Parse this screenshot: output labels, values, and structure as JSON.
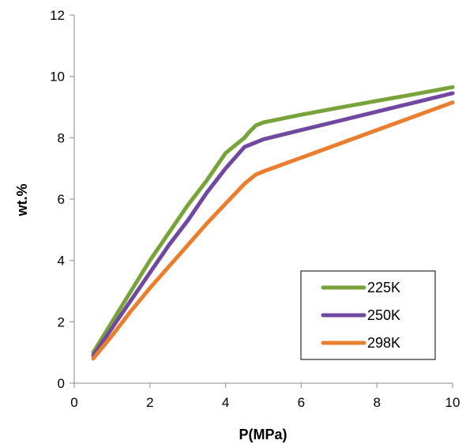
{
  "chart_data": {
    "type": "line",
    "title": "",
    "xlabel": "P(MPa)",
    "ylabel": "wt.%",
    "xlim": [
      0,
      10
    ],
    "ylim": [
      0,
      12
    ],
    "xticks": [
      0,
      2,
      4,
      6,
      8,
      10
    ],
    "yticks": [
      0,
      2,
      4,
      6,
      8,
      10,
      12
    ],
    "grid": false,
    "legend_position": "bottom-right",
    "series": [
      {
        "name": "225K",
        "color": "#77A33A",
        "x": [
          0.5,
          1,
          1.5,
          2,
          2.5,
          3,
          3.5,
          4,
          4.5,
          4.6,
          4.8,
          5,
          6,
          7,
          8,
          9,
          10
        ],
        "y": [
          1.0,
          2.0,
          3.0,
          4.0,
          4.9,
          5.8,
          6.6,
          7.5,
          8.0,
          8.15,
          8.4,
          8.5,
          8.75,
          8.98,
          9.2,
          9.42,
          9.65
        ]
      },
      {
        "name": "250K",
        "color": "#7048A0",
        "x": [
          0.5,
          1,
          1.5,
          2,
          2.5,
          3,
          3.5,
          4,
          4.5,
          5,
          6,
          7,
          8,
          9,
          10
        ],
        "y": [
          0.9,
          1.8,
          2.7,
          3.6,
          4.5,
          5.3,
          6.2,
          7.0,
          7.7,
          7.95,
          8.25,
          8.55,
          8.85,
          9.15,
          9.45
        ]
      },
      {
        "name": "298K",
        "color": "#E97E2E",
        "x": [
          0.5,
          1,
          1.5,
          2,
          2.5,
          3,
          3.5,
          4,
          4.5,
          4.8,
          5,
          6,
          7,
          8,
          9,
          10
        ],
        "y": [
          0.8,
          1.55,
          2.35,
          3.1,
          3.8,
          4.5,
          5.2,
          5.85,
          6.5,
          6.8,
          6.9,
          7.35,
          7.8,
          8.25,
          8.7,
          9.15
        ]
      }
    ]
  }
}
